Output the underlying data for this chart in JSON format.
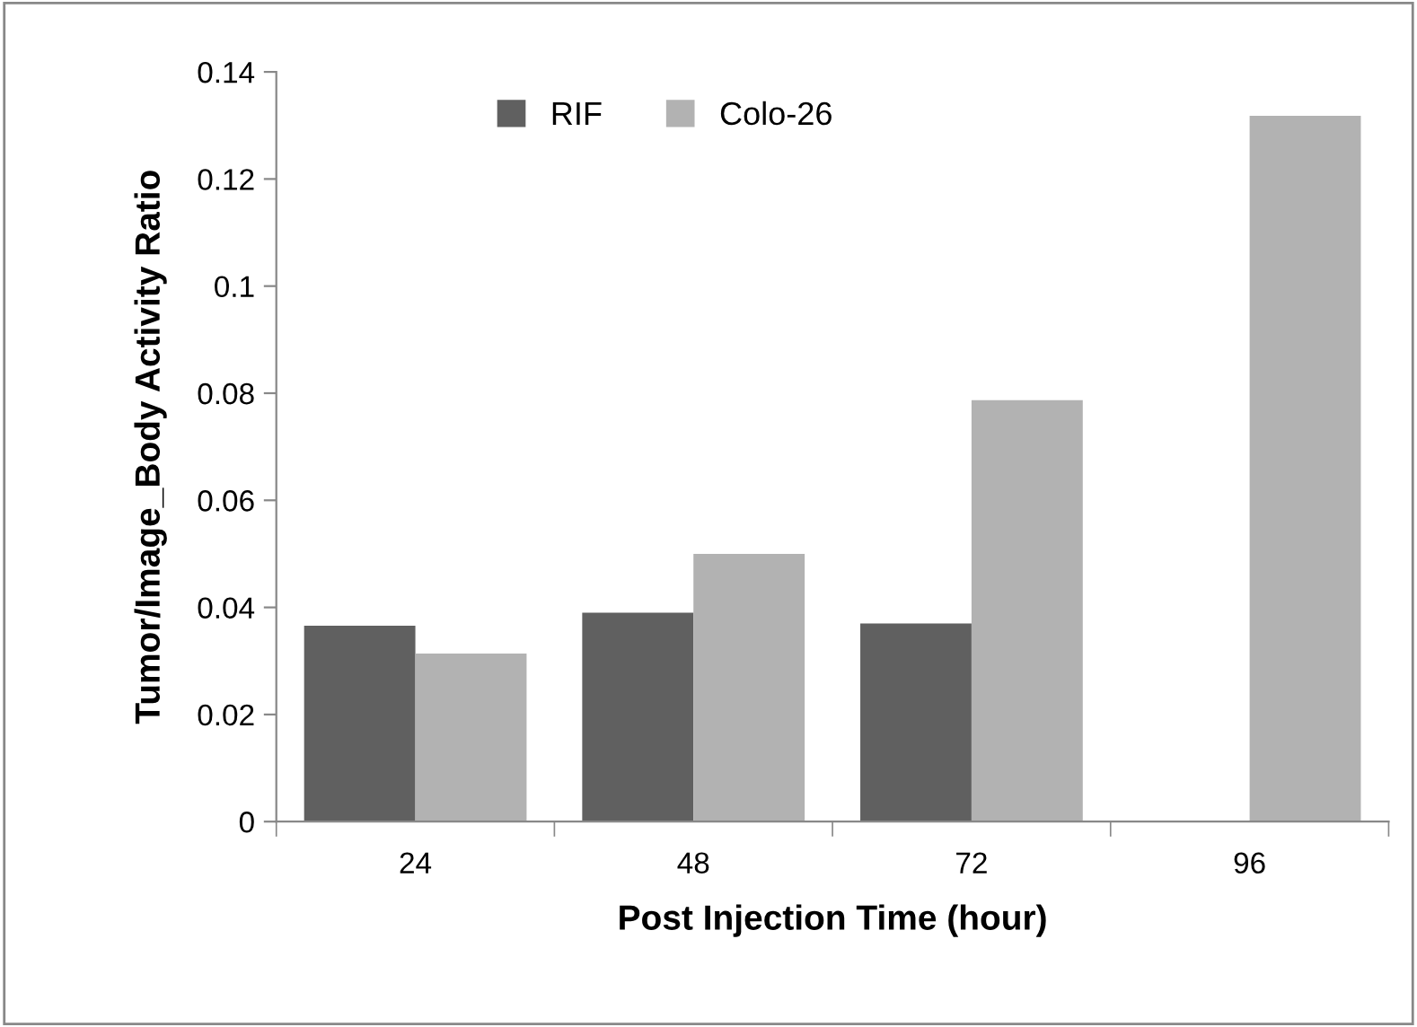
{
  "chart_data": {
    "type": "bar",
    "xlabel": "Post Injection Time (hour)",
    "ylabel": "Tumor/Image_Body Activity Ratio",
    "categories": [
      "24",
      "48",
      "72",
      "96"
    ],
    "series": [
      {
        "name": "RIF",
        "color": "#606060",
        "values": [
          0.0366,
          0.039,
          0.037,
          null
        ]
      },
      {
        "name": "Colo-26",
        "color": "#b2b2b2",
        "values": [
          0.0314,
          0.05,
          0.0787,
          0.1318
        ]
      }
    ],
    "ylim": [
      0,
      0.14
    ],
    "yticks": [
      0,
      0.02,
      0.04,
      0.06,
      0.08,
      0.1,
      0.12,
      0.14
    ],
    "grid": false,
    "legend": "top"
  }
}
